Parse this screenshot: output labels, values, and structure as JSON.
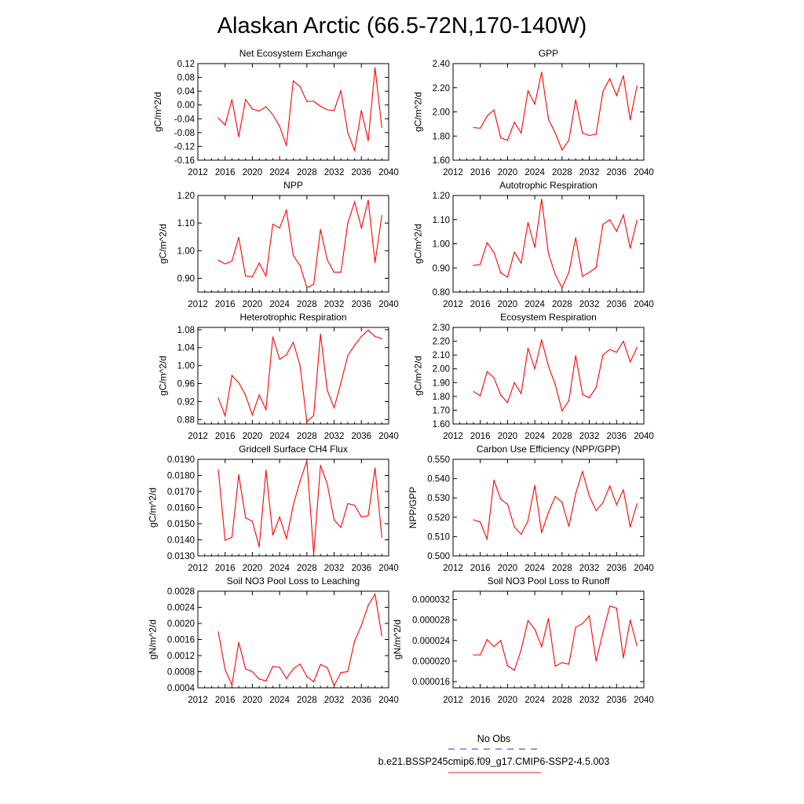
{
  "title": "Alaskan Arctic (66.5-72N,170-140W)",
  "legend": {
    "entries": [
      {
        "label": "No Obs",
        "color": "#2b2bd6",
        "dash": true
      },
      {
        "label": "b.e21.BSSP245cmip6.f09_g17.CMIP6-SSP2-4.5.003",
        "color": "#e3211c",
        "dash": false
      }
    ]
  },
  "colors": {
    "series": "#ff0000",
    "axis": "#000000"
  },
  "chart_data": [
    {
      "type": "line",
      "title": "Net Ecosystem Exchange",
      "ylabel": "gC/m^2/d",
      "xlim": [
        2012,
        2040
      ],
      "xticks": [
        2012,
        2016,
        2020,
        2024,
        2028,
        2032,
        2036,
        2040
      ],
      "ylim": [
        -0.16,
        0.12
      ],
      "yticks": [
        "-0.16",
        "-0.12",
        "-0.08",
        "-0.04",
        "0.00",
        "0.04",
        "0.08",
        "0.12"
      ],
      "x": [
        2015,
        2016,
        2017,
        2018,
        2019,
        2020,
        2021,
        2022,
        2023,
        2024,
        2025,
        2026,
        2027,
        2028,
        2029,
        2030,
        2031,
        2032,
        2033,
        2034,
        2035,
        2036,
        2037,
        2038,
        2039
      ],
      "series": [
        {
          "values": [
            -0.038,
            -0.058,
            0.016,
            -0.092,
            0.016,
            -0.012,
            -0.017,
            -0.005,
            -0.028,
            -0.062,
            -0.118,
            0.07,
            0.053,
            0.01,
            0.011,
            -0.004,
            -0.014,
            -0.016,
            0.042,
            -0.08,
            -0.132,
            -0.016,
            -0.104,
            0.108,
            -0.065
          ]
        }
      ]
    },
    {
      "type": "line",
      "title": "GPP",
      "ylabel": "gC/m^2/d",
      "xlim": [
        2012,
        2040
      ],
      "xticks": [
        2012,
        2016,
        2020,
        2024,
        2028,
        2032,
        2036,
        2040
      ],
      "ylim": [
        1.6,
        2.4
      ],
      "yticks": [
        "1.60",
        "1.80",
        "2.00",
        "2.20",
        "2.40"
      ],
      "x": [
        2015,
        2016,
        2017,
        2018,
        2019,
        2020,
        2021,
        2022,
        2023,
        2024,
        2025,
        2026,
        2027,
        2028,
        2029,
        2030,
        2031,
        2032,
        2033,
        2034,
        2035,
        2036,
        2037,
        2038,
        2039
      ],
      "series": [
        {
          "values": [
            1.87,
            1.865,
            1.965,
            2.015,
            1.785,
            1.765,
            1.915,
            1.825,
            2.175,
            2.065,
            2.33,
            1.94,
            1.825,
            1.685,
            1.765,
            2.1,
            1.825,
            1.805,
            1.815,
            2.17,
            2.275,
            2.135,
            2.3,
            1.935,
            2.215
          ]
        }
      ]
    },
    {
      "type": "line",
      "title": "NPP",
      "ylabel": "gC/m^2/d",
      "xlim": [
        2012,
        2040
      ],
      "xticks": [
        2012,
        2016,
        2020,
        2024,
        2028,
        2032,
        2036,
        2040
      ],
      "ylim": [
        0.85,
        1.2
      ],
      "yticks": [
        "0.90",
        "1.00",
        "1.10",
        "1.20"
      ],
      "x": [
        2015,
        2016,
        2017,
        2018,
        2019,
        2020,
        2021,
        2022,
        2023,
        2024,
        2025,
        2026,
        2027,
        2028,
        2029,
        2030,
        2031,
        2032,
        2033,
        2034,
        2035,
        2036,
        2037,
        2038,
        2039
      ],
      "series": [
        {
          "values": [
            0.966,
            0.952,
            0.962,
            1.048,
            0.908,
            0.906,
            0.955,
            0.908,
            1.096,
            1.082,
            1.147,
            0.983,
            0.946,
            0.866,
            0.878,
            1.077,
            0.966,
            0.922,
            0.922,
            1.1,
            1.177,
            1.082,
            1.183,
            0.957,
            1.127
          ]
        }
      ]
    },
    {
      "type": "line",
      "title": "Autotrophic Respiration",
      "ylabel": "gC/m^2/d",
      "xlim": [
        2012,
        2040
      ],
      "xticks": [
        2012,
        2016,
        2020,
        2024,
        2028,
        2032,
        2036,
        2040
      ],
      "ylim": [
        0.8,
        1.2
      ],
      "yticks": [
        "0.80",
        "0.90",
        "1.00",
        "1.10",
        "1.20"
      ],
      "x": [
        2015,
        2016,
        2017,
        2018,
        2019,
        2020,
        2021,
        2022,
        2023,
        2024,
        2025,
        2026,
        2027,
        2028,
        2029,
        2030,
        2031,
        2032,
        2033,
        2034,
        2035,
        2036,
        2037,
        2038,
        2039
      ],
      "series": [
        {
          "values": [
            0.91,
            0.915,
            1.005,
            0.965,
            0.88,
            0.862,
            0.965,
            0.92,
            1.088,
            0.985,
            1.185,
            0.96,
            0.873,
            0.818,
            0.882,
            1.025,
            0.865,
            0.882,
            0.902,
            1.08,
            1.1,
            1.052,
            1.12,
            0.982,
            1.097
          ]
        }
      ]
    },
    {
      "type": "line",
      "title": "Heterotrophic Respiration",
      "ylabel": "gC/m^2/d",
      "xlim": [
        2012,
        2040
      ],
      "xticks": [
        2012,
        2016,
        2020,
        2024,
        2028,
        2032,
        2036,
        2040
      ],
      "ylim": [
        0.87,
        1.085
      ],
      "yticks": [
        "0.88",
        "0.92",
        "0.96",
        "1.00",
        "1.04",
        "1.08"
      ],
      "x": [
        2015,
        2016,
        2017,
        2018,
        2019,
        2020,
        2021,
        2022,
        2023,
        2024,
        2025,
        2026,
        2027,
        2028,
        2029,
        2030,
        2031,
        2032,
        2033,
        2034,
        2035,
        2036,
        2037,
        2038,
        2039
      ],
      "series": [
        {
          "values": [
            0.928,
            0.888,
            0.978,
            0.962,
            0.934,
            0.89,
            0.935,
            0.902,
            1.064,
            1.014,
            1.024,
            1.052,
            1.0,
            0.875,
            0.889,
            1.07,
            0.945,
            0.906,
            0.962,
            1.022,
            1.045,
            1.065,
            1.079,
            1.065,
            1.06
          ]
        }
      ]
    },
    {
      "type": "line",
      "title": "Ecosystem Respiration",
      "ylabel": "gC/m^2/d",
      "xlim": [
        2012,
        2040
      ],
      "xticks": [
        2012,
        2016,
        2020,
        2024,
        2028,
        2032,
        2036,
        2040
      ],
      "ylim": [
        1.6,
        2.3
      ],
      "yticks": [
        "1.60",
        "1.70",
        "1.80",
        "1.90",
        "2.00",
        "2.10",
        "2.20",
        "2.30"
      ],
      "x": [
        2015,
        2016,
        2017,
        2018,
        2019,
        2020,
        2021,
        2022,
        2023,
        2024,
        2025,
        2026,
        2027,
        2028,
        2029,
        2030,
        2031,
        2032,
        2033,
        2034,
        2035,
        2036,
        2037,
        2038,
        2039
      ],
      "series": [
        {
          "values": [
            1.835,
            1.805,
            1.98,
            1.935,
            1.81,
            1.755,
            1.9,
            1.82,
            2.15,
            2.0,
            2.21,
            2.02,
            1.885,
            1.695,
            1.77,
            2.095,
            1.815,
            1.79,
            1.865,
            2.1,
            2.14,
            2.12,
            2.2,
            2.05,
            2.155
          ]
        }
      ]
    },
    {
      "type": "line",
      "title": "Gridcell Surface CH4 Flux",
      "ylabel": "gC/m^2/d",
      "xlim": [
        2012,
        2040
      ],
      "xticks": [
        2012,
        2016,
        2020,
        2024,
        2028,
        2032,
        2036,
        2040
      ],
      "ylim": [
        0.013,
        0.019
      ],
      "yticks": [
        "0.0130",
        "0.0140",
        "0.0150",
        "0.0160",
        "0.0170",
        "0.0180",
        "0.0190"
      ],
      "x": [
        2015,
        2016,
        2017,
        2018,
        2019,
        2020,
        2021,
        2022,
        2023,
        2024,
        2025,
        2026,
        2027,
        2028,
        2029,
        2030,
        2031,
        2032,
        2033,
        2034,
        2035,
        2036,
        2037,
        2038,
        2039
      ],
      "series": [
        {
          "values": [
            0.01835,
            0.01397,
            0.01415,
            0.01805,
            0.01537,
            0.01515,
            0.01357,
            0.01833,
            0.01429,
            0.01542,
            0.01408,
            0.01615,
            0.01765,
            0.0189,
            0.01312,
            0.01863,
            0.01745,
            0.01523,
            0.01477,
            0.01625,
            0.01615,
            0.01542,
            0.0155,
            0.01847,
            0.01415
          ]
        }
      ]
    },
    {
      "type": "line",
      "title": "Carbon Use Efficiency (NPP/GPP)",
      "ylabel": "NPP/GPP",
      "xlim": [
        2012,
        2040
      ],
      "xticks": [
        2012,
        2016,
        2020,
        2024,
        2028,
        2032,
        2036,
        2040
      ],
      "ylim": [
        0.5,
        0.55
      ],
      "yticks": [
        "0.500",
        "0.510",
        "0.520",
        "0.530",
        "0.540",
        "0.550"
      ],
      "x": [
        2015,
        2016,
        2017,
        2018,
        2019,
        2020,
        2021,
        2022,
        2023,
        2024,
        2025,
        2026,
        2027,
        2028,
        2029,
        2030,
        2031,
        2032,
        2033,
        2034,
        2035,
        2036,
        2037,
        2038,
        2039
      ],
      "series": [
        {
          "values": [
            0.5187,
            0.5175,
            0.5085,
            0.5393,
            0.5293,
            0.5268,
            0.515,
            0.5112,
            0.5182,
            0.5365,
            0.512,
            0.5225,
            0.5308,
            0.5277,
            0.5153,
            0.5322,
            0.5437,
            0.531,
            0.5235,
            0.5275,
            0.5362,
            0.5265,
            0.5342,
            0.515,
            0.527
          ]
        }
      ]
    },
    {
      "type": "line",
      "title": "Soil NO3 Pool Loss to Leaching",
      "ylabel": "gN/m^2/d",
      "xlim": [
        2012,
        2040
      ],
      "xticks": [
        2012,
        2016,
        2020,
        2024,
        2028,
        2032,
        2036,
        2040
      ],
      "ylim": [
        0.0004,
        0.0028
      ],
      "yticks": [
        "0.0004",
        "0.0008",
        "0.0012",
        "0.0016",
        "0.0020",
        "0.0024",
        "0.0028"
      ],
      "x": [
        2015,
        2016,
        2017,
        2018,
        2019,
        2020,
        2021,
        2022,
        2023,
        2024,
        2025,
        2026,
        2027,
        2028,
        2029,
        2030,
        2031,
        2032,
        2033,
        2034,
        2035,
        2036,
        2037,
        2038,
        2039
      ],
      "series": [
        {
          "values": [
            0.00179,
            0.00086,
            0.00047,
            0.00153,
            0.00087,
            0.0008,
            0.00062,
            0.00057,
            0.00093,
            0.00091,
            0.00063,
            0.00087,
            0.00099,
            0.00068,
            0.00055,
            0.00098,
            0.0009,
            0.00045,
            0.00078,
            0.0008,
            0.00156,
            0.00195,
            0.00245,
            0.00273,
            0.00169
          ]
        }
      ]
    },
    {
      "type": "line",
      "title": "Soil NO3 Pool Loss to Runoff",
      "ylabel": "gN/m^2/d",
      "xlim": [
        2012,
        2040
      ],
      "xticks": [
        2012,
        2016,
        2020,
        2024,
        2028,
        2032,
        2036,
        2040
      ],
      "ylim": [
        1.48e-05,
        3.36e-05
      ],
      "yticks": [
        "0.000016",
        "0.000020",
        "0.000024",
        "0.000028",
        "0.000032"
      ],
      "x": [
        2015,
        2016,
        2017,
        2018,
        2019,
        2020,
        2021,
        2022,
        2023,
        2024,
        2025,
        2026,
        2027,
        2028,
        2029,
        2030,
        2031,
        2032,
        2033,
        2034,
        2035,
        2036,
        2037,
        2038,
        2039
      ],
      "series": [
        {
          "values": [
            2.12e-05,
            2.12e-05,
            2.42e-05,
            2.28e-05,
            2.4e-05,
            1.91e-05,
            1.82e-05,
            2.22e-05,
            2.79e-05,
            2.62e-05,
            2.28e-05,
            2.83e-05,
            1.9e-05,
            1.97e-05,
            1.94e-05,
            2.66e-05,
            2.73e-05,
            2.88e-05,
            2e-05,
            2.56e-05,
            3.07e-05,
            3.03e-05,
            2.06e-05,
            2.8e-05,
            2.3e-05
          ]
        }
      ]
    }
  ]
}
